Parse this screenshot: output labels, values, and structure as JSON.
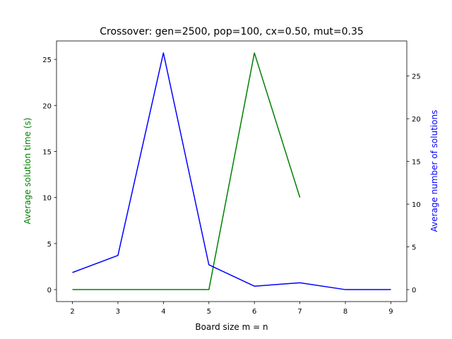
{
  "chart_data": {
    "type": "line",
    "title": "Crossover: gen=2500, pop=100, cx=0.50, mut=0.35",
    "xlabel": "Board size m = n",
    "ylabel_left": "Average solution time (s)",
    "ylabel_right": "Average number of solutions",
    "x_ticks": [
      "2",
      "3",
      "4",
      "5",
      "6",
      "7",
      "8",
      "9"
    ],
    "y_left_ticks": [
      "0",
      "5",
      "10",
      "15",
      "20",
      "25"
    ],
    "y_right_ticks": [
      "0",
      "5",
      "10",
      "15",
      "20",
      "25"
    ],
    "xlim": [
      1.65,
      9.35
    ],
    "ylim_left": [
      -1.3,
      27.0
    ],
    "ylim_right": [
      -1.4,
      29.1
    ],
    "grid": false,
    "series": [
      {
        "axis": "left",
        "color": "#008000",
        "x": [
          2,
          3,
          4,
          5,
          6,
          7
        ],
        "values": [
          0,
          0,
          0,
          0,
          25.7,
          10.0
        ]
      },
      {
        "axis": "right",
        "color": "#0000ff",
        "x": [
          2,
          3,
          4,
          5,
          6,
          7,
          8,
          9
        ],
        "values": [
          2.0,
          4.0,
          27.7,
          2.9,
          0.4,
          0.8,
          0,
          0
        ]
      }
    ]
  }
}
